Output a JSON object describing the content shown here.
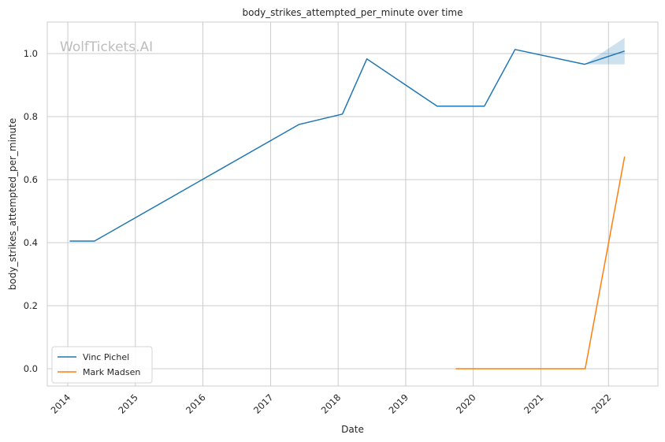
{
  "chart_data": {
    "type": "line",
    "title": "body_strikes_attempted_per_minute over time",
    "xlabel": "Date",
    "ylabel": "body_strikes_attempted_per_minute",
    "watermark": "WolfTickets.AI",
    "x_ticks": [
      "2014",
      "2015",
      "2016",
      "2017",
      "2018",
      "2019",
      "2020",
      "2021",
      "2022"
    ],
    "y_ticks": [
      "0.0",
      "0.2",
      "0.4",
      "0.6",
      "0.8",
      "1.0"
    ],
    "xlim": [
      "2013-09-12",
      "2022-09-25"
    ],
    "ylim": [
      -0.055,
      1.1
    ],
    "grid": true,
    "legend_position": "lower-left",
    "series": [
      {
        "name": "Vinc Pichel",
        "color": "#1f77b4",
        "points": [
          [
            "2014-01-11",
            0.405
          ],
          [
            "2014-05-25",
            0.405
          ],
          [
            "2017-06-03",
            0.775
          ],
          [
            "2018-01-24",
            0.808
          ],
          [
            "2018-06-05",
            0.983
          ],
          [
            "2019-06-20",
            0.833
          ],
          [
            "2020-03-01",
            0.833
          ],
          [
            "2020-08-14",
            1.013
          ],
          [
            "2021-08-25",
            0.966
          ],
          [
            "2022-03-29",
            1.008
          ]
        ],
        "band": {
          "color": "#1f77b4",
          "points": [
            [
              "2021-08-25",
              0.966,
              0.966
            ],
            [
              "2022-03-29",
              0.966,
              1.05
            ]
          ]
        }
      },
      {
        "name": "Mark Madsen",
        "color": "#ff7f0e",
        "points": [
          [
            "2019-09-28",
            0.0
          ],
          [
            "2021-08-28",
            0.0
          ],
          [
            "2022-03-29",
            0.673
          ]
        ]
      }
    ]
  }
}
